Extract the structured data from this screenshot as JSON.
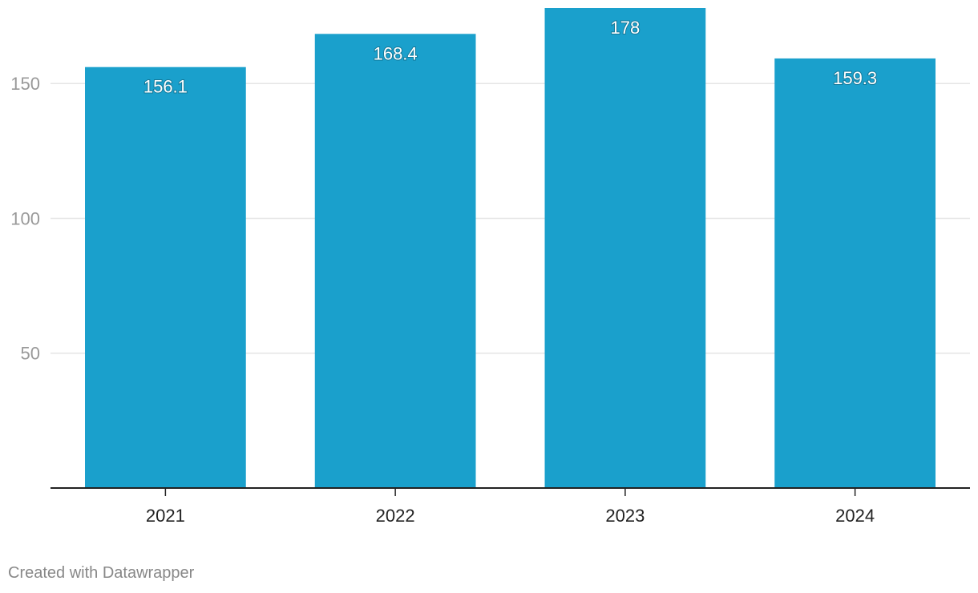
{
  "chart_data": {
    "type": "bar",
    "categories": [
      "2021",
      "2022",
      "2023",
      "2024"
    ],
    "values": [
      156.1,
      168.4,
      178,
      159.3
    ],
    "value_labels": [
      "156.1",
      "168.4",
      "178",
      "159.3"
    ],
    "yticks": [
      50,
      100,
      150
    ],
    "ylim": [
      0,
      178
    ],
    "grid": true,
    "bar_color": "#1aa0cc",
    "gridline_color": "#e5e5e5",
    "axis_color": "#222222"
  },
  "footer": {
    "credit": "Created with Datawrapper"
  }
}
